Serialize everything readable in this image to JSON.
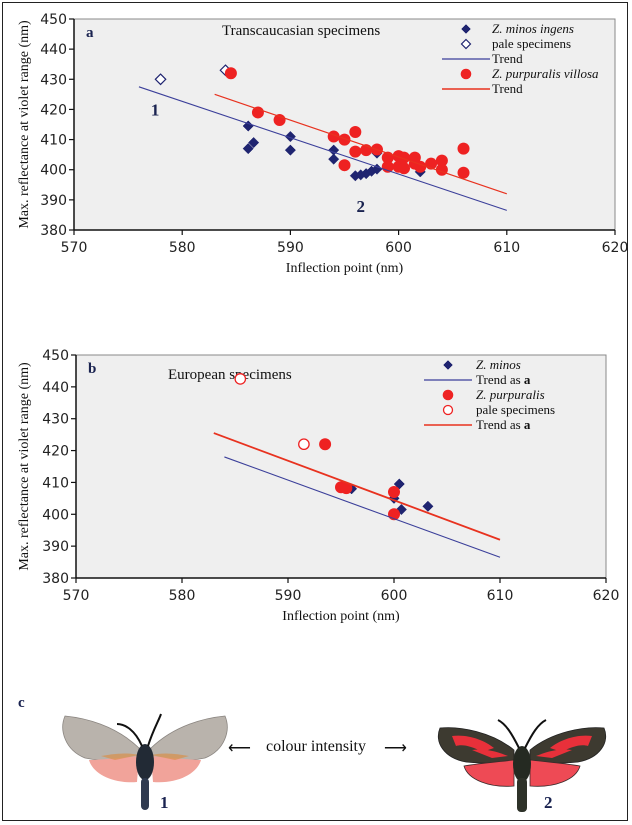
{
  "colors": {
    "minos": "#1f2470",
    "purpuralis": "#ee2222",
    "trend_minos": "#3b3f9a",
    "trend_purpuralis": "#e8321f",
    "plot_bg": "#efefef"
  },
  "chart_data": [
    {
      "type": "scatter",
      "panel_label": "a",
      "title": "Transcaucasian specimens",
      "xlabel": "Inflection point (nm)",
      "ylabel": "Max. reflectance at violet range (nm)",
      "xlim": [
        570,
        620
      ],
      "ylim": [
        380,
        450
      ],
      "xticks": [
        "570",
        "580",
        "590",
        "600",
        "610",
        "620"
      ],
      "yticks": [
        "380",
        "390",
        "400",
        "410",
        "420",
        "430",
        "440",
        "450"
      ],
      "legend_position": "top-right",
      "legend": [
        {
          "label": "Z. minos ingens",
          "marker": "diamond-filled",
          "italic": true
        },
        {
          "label": "pale specimens",
          "marker": "diamond-open",
          "italic": false
        },
        {
          "label": "Trend",
          "marker": "line-blue",
          "italic": false
        },
        {
          "label": "Z. purpuralis villosa",
          "marker": "circle-filled",
          "italic": true
        },
        {
          "label": "Trend",
          "marker": "line-red",
          "italic": false
        }
      ],
      "annotations": [
        {
          "text": "1",
          "x": 577.5,
          "y": 418
        },
        {
          "text": "2",
          "x": 596.5,
          "y": 386
        }
      ],
      "series": [
        {
          "name": "Z. minos ingens",
          "marker": "diamond-filled",
          "points": [
            [
              586.1,
              414.5
            ],
            [
              586.1,
              407
            ],
            [
              586.6,
              409
            ],
            [
              590,
              411
            ],
            [
              590,
              406.5
            ],
            [
              594,
              406.5
            ],
            [
              594,
              403.5
            ],
            [
              596,
              398
            ],
            [
              596.5,
              398.3
            ],
            [
              597,
              398.7
            ],
            [
              597.5,
              399.5
            ],
            [
              598,
              405.5
            ],
            [
              598,
              400.2
            ],
            [
              602,
              399.3
            ]
          ]
        },
        {
          "name": "pale specimens (Z. minos ingens)",
          "marker": "diamond-open",
          "points": [
            [
              578,
              430
            ],
            [
              584,
              433
            ]
          ]
        },
        {
          "name": "Z. purpuralis villosa",
          "marker": "circle-filled",
          "points": [
            [
              584.5,
              432
            ],
            [
              587,
              419
            ],
            [
              589,
              416.5
            ],
            [
              594,
              411
            ],
            [
              595,
              410
            ],
            [
              595,
              401.5
            ],
            [
              596,
              412.5
            ],
            [
              596,
              406
            ],
            [
              597,
              406.5
            ],
            [
              598,
              406.7
            ],
            [
              599,
              404
            ],
            [
              599,
              401
            ],
            [
              600,
              404.5
            ],
            [
              600,
              401
            ],
            [
              600.5,
              404
            ],
            [
              600.5,
              400.5
            ],
            [
              601.5,
              404
            ],
            [
              601.5,
              402
            ],
            [
              602,
              401
            ],
            [
              603,
              402
            ],
            [
              604,
              403
            ],
            [
              604,
              400
            ],
            [
              606,
              407
            ],
            [
              606,
              399
            ]
          ]
        },
        {
          "name": "Trend (Z. minos ingens)",
          "type": "line",
          "points": [
            [
              576,
              427.5
            ],
            [
              610,
              386.5
            ]
          ]
        },
        {
          "name": "Trend (Z. purpuralis villosa)",
          "type": "line",
          "points": [
            [
              583,
              425
            ],
            [
              610,
              392
            ]
          ]
        }
      ]
    },
    {
      "type": "scatter",
      "panel_label": "b",
      "title": "European specimens",
      "xlabel": "Inflection point (nm)",
      "ylabel": "Max. reflectance at violet range (nm)",
      "xlim": [
        570,
        620
      ],
      "ylim": [
        380,
        450
      ],
      "xticks": [
        "570",
        "580",
        "590",
        "600",
        "610",
        "620"
      ],
      "yticks": [
        "380",
        "390",
        "400",
        "410",
        "420",
        "430",
        "440",
        "450"
      ],
      "legend_position": "top-right",
      "legend": [
        {
          "label": "Z. minos",
          "marker": "diamond-filled",
          "italic": true
        },
        {
          "label": "Trend as a",
          "marker": "line-blue",
          "italic": false
        },
        {
          "label": "Z. purpuralis",
          "marker": "circle-filled",
          "italic": true
        },
        {
          "label": "pale specimens",
          "marker": "circle-open",
          "italic": false
        },
        {
          "label": "Trend as a",
          "marker": "line-red",
          "italic": false
        }
      ],
      "series": [
        {
          "name": "Z. minos",
          "marker": "diamond-filled",
          "points": [
            [
              596,
              408
            ],
            [
              600,
              405
            ],
            [
              600.5,
              409.5
            ],
            [
              600.7,
              401.5
            ],
            [
              603.2,
              402.5
            ]
          ]
        },
        {
          "name": "Z. purpuralis",
          "marker": "circle-filled",
          "points": [
            [
              593.5,
              422
            ],
            [
              595,
              408.5
            ],
            [
              595.5,
              408.2
            ],
            [
              600,
              407
            ],
            [
              600,
              400
            ]
          ]
        },
        {
          "name": "pale specimens (Z. purpuralis)",
          "marker": "circle-open",
          "points": [
            [
              585.5,
              442.5
            ],
            [
              591.5,
              422
            ]
          ]
        },
        {
          "name": "Trend as a (Z. minos)",
          "type": "line",
          "points": [
            [
              584,
              418
            ],
            [
              610,
              386.5
            ]
          ]
        },
        {
          "name": "Trend as a (Z. purpuralis)",
          "type": "line",
          "points": [
            [
              583,
              425.5
            ],
            [
              610,
              392
            ]
          ]
        }
      ]
    }
  ],
  "panel_c": {
    "label": "c",
    "caption": "colour intensity",
    "left_number": "1",
    "right_number": "2",
    "left_image": "pale-burnet-moth",
    "right_image": "intense-red-burnet-moth"
  }
}
